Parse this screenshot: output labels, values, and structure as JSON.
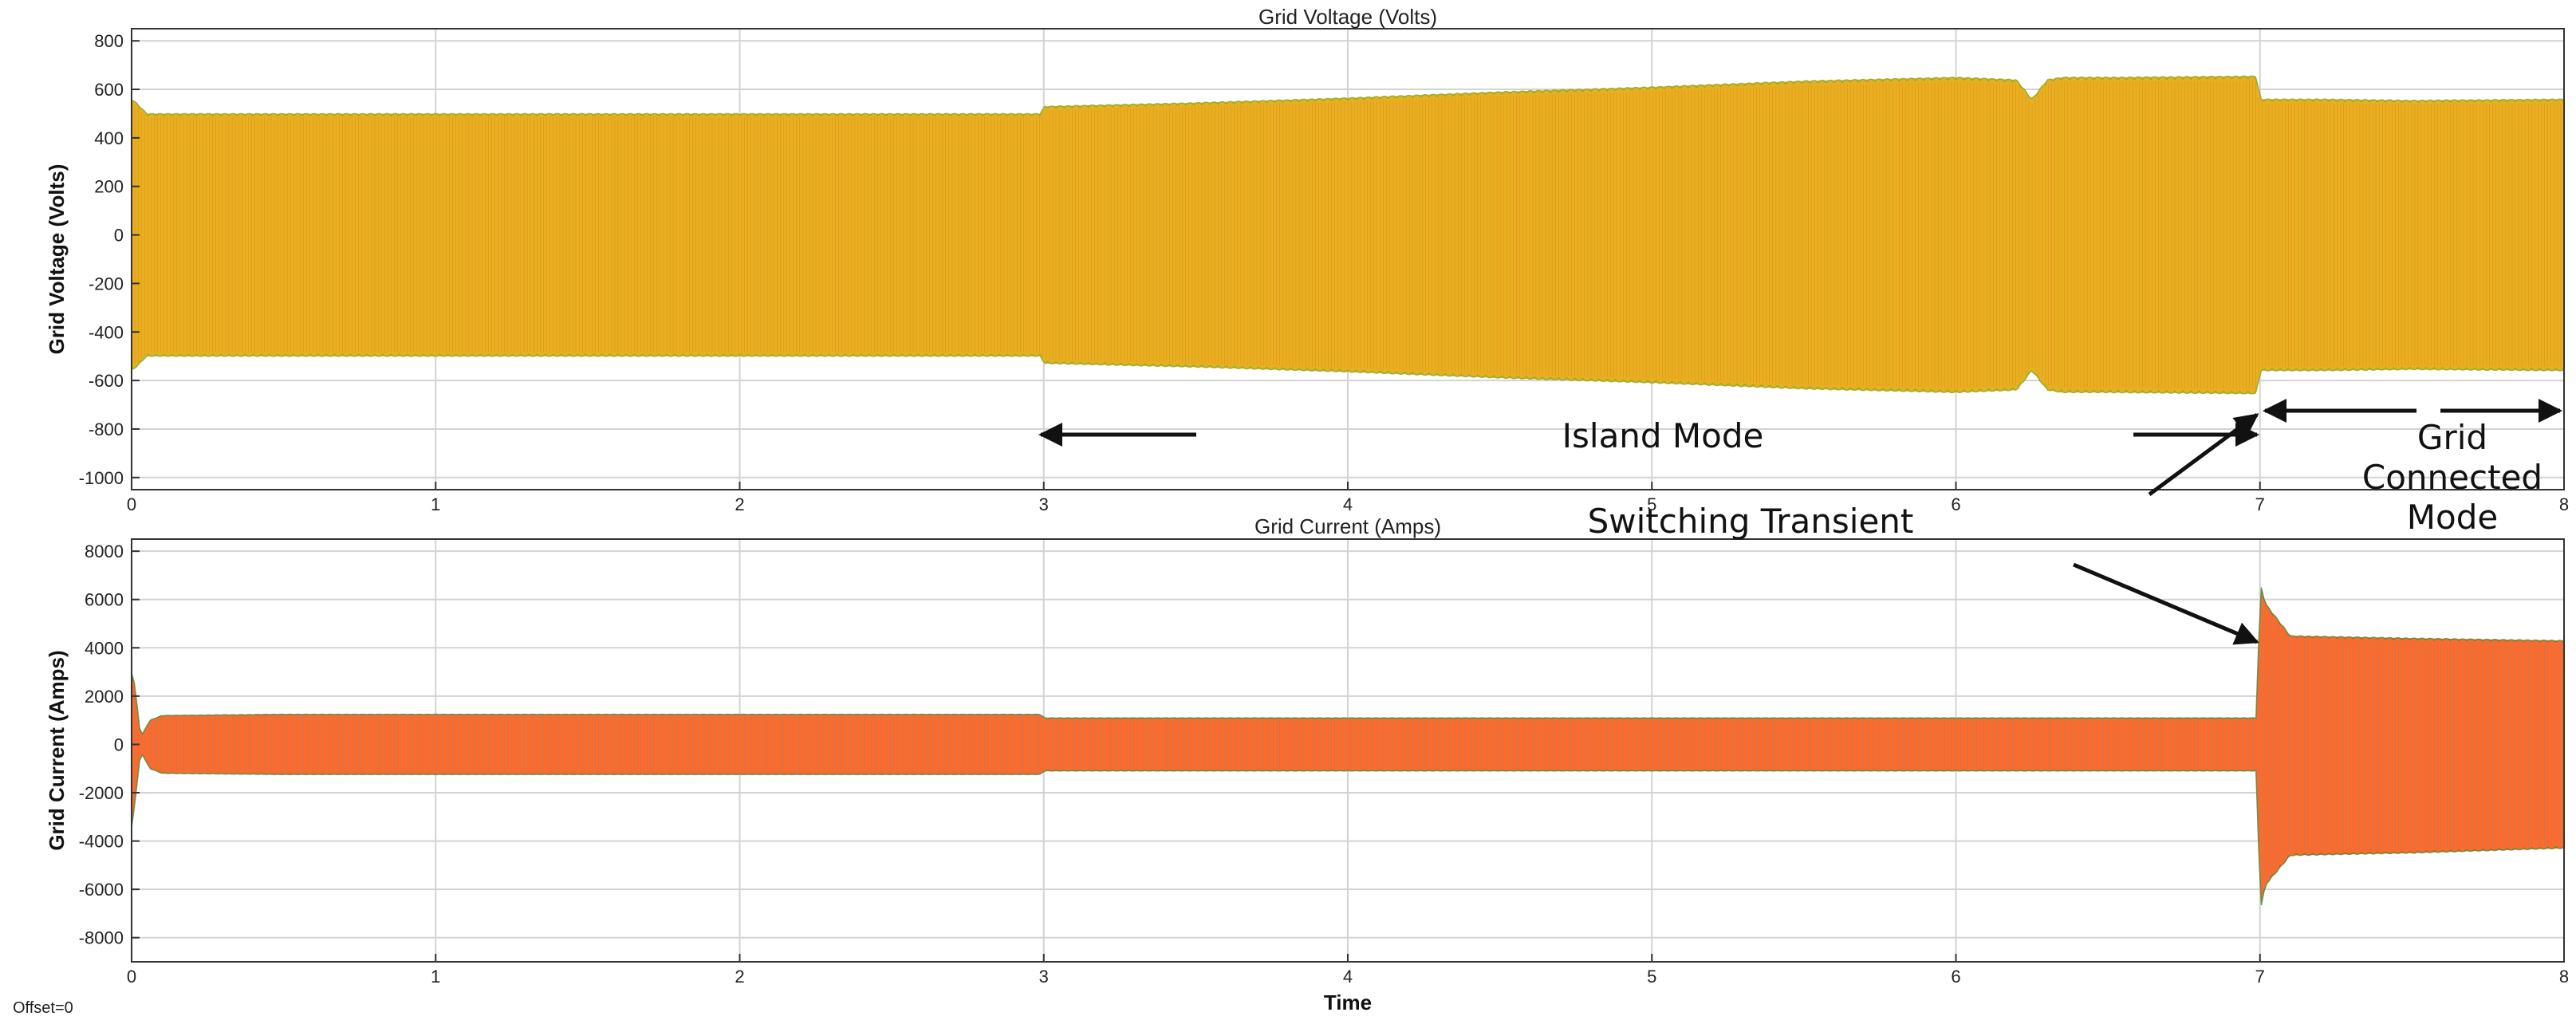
{
  "colors": {
    "voltage_fill": "#E8B020",
    "voltage_edge_red": "#D9531E",
    "voltage_edge_green": "#77AC30",
    "current_fill": "#FF6A2A",
    "current_edge_blue": "#1FA0D8",
    "current_edge_green": "#3E8E3E",
    "grid": "#D3D3D3",
    "axes": "#333333"
  },
  "offset_note": "Offset=0",
  "annotations": {
    "island_mode": "Island Mode",
    "grid_connected_line1": "Grid",
    "grid_connected_line2": "Connected",
    "grid_connected_line3": "Mode",
    "switching_transient": "Switching Transient"
  },
  "chart_data": [
    {
      "type": "area",
      "title": "Grid Voltage (Volts)",
      "xlabel": "",
      "ylabel": "Grid Voltage (Volts)",
      "xlim": [
        0,
        8
      ],
      "ylim": [
        -1050,
        850
      ],
      "x_ticks": [
        0,
        1,
        2,
        3,
        4,
        5,
        6,
        7,
        8
      ],
      "y_ticks": [
        800,
        600,
        400,
        200,
        0,
        -200,
        -400,
        -600,
        -800,
        -1000
      ],
      "grid": true,
      "envelope": {
        "x": [
          0,
          0.02,
          0.05,
          0.5,
          1,
          2,
          2.99,
          3.0,
          3.5,
          4,
          4.5,
          5,
          5.5,
          6,
          6.2,
          6.25,
          6.3,
          6.35,
          6.5,
          6.99,
          7.0,
          7.2,
          7.5,
          8
        ],
        "upper": [
          560,
          540,
          500,
          500,
          500,
          500,
          500,
          530,
          545,
          565,
          590,
          610,
          635,
          650,
          640,
          560,
          640,
          650,
          650,
          655,
          560,
          560,
          555,
          560
        ],
        "lower": [
          -560,
          -540,
          -500,
          -500,
          -500,
          -500,
          -500,
          -530,
          -545,
          -565,
          -590,
          -610,
          -635,
          -650,
          -640,
          -560,
          -640,
          -650,
          -650,
          -655,
          -560,
          -560,
          -555,
          -560
        ]
      }
    },
    {
      "type": "area",
      "title": "Grid Current (Amps)",
      "xlabel": "Time",
      "ylabel": "Grid Current (Amps)",
      "xlim": [
        0,
        8
      ],
      "ylim": [
        -9000,
        8500
      ],
      "x_ticks": [
        0,
        1,
        2,
        3,
        4,
        5,
        6,
        7,
        8
      ],
      "y_ticks": [
        8000,
        6000,
        4000,
        2000,
        0,
        -2000,
        -4000,
        -6000,
        -8000
      ],
      "grid": true,
      "envelope": {
        "x": [
          0,
          0.01,
          0.03,
          0.06,
          0.1,
          0.5,
          1,
          2,
          2.99,
          3.0,
          4,
          5,
          6,
          6.99,
          7.0,
          7.02,
          7.1,
          7.5,
          8
        ],
        "upper": [
          3000,
          2500,
          300,
          1000,
          1200,
          1250,
          1250,
          1250,
          1250,
          1100,
          1100,
          1100,
          1100,
          1100,
          6700,
          5800,
          4500,
          4400,
          4300
        ],
        "lower": [
          -3500,
          -2500,
          -300,
          -1000,
          -1200,
          -1250,
          -1250,
          -1250,
          -1250,
          -1100,
          -1100,
          -1100,
          -1100,
          -1100,
          -6900,
          -5800,
          -4600,
          -4500,
          -4300
        ]
      }
    }
  ]
}
